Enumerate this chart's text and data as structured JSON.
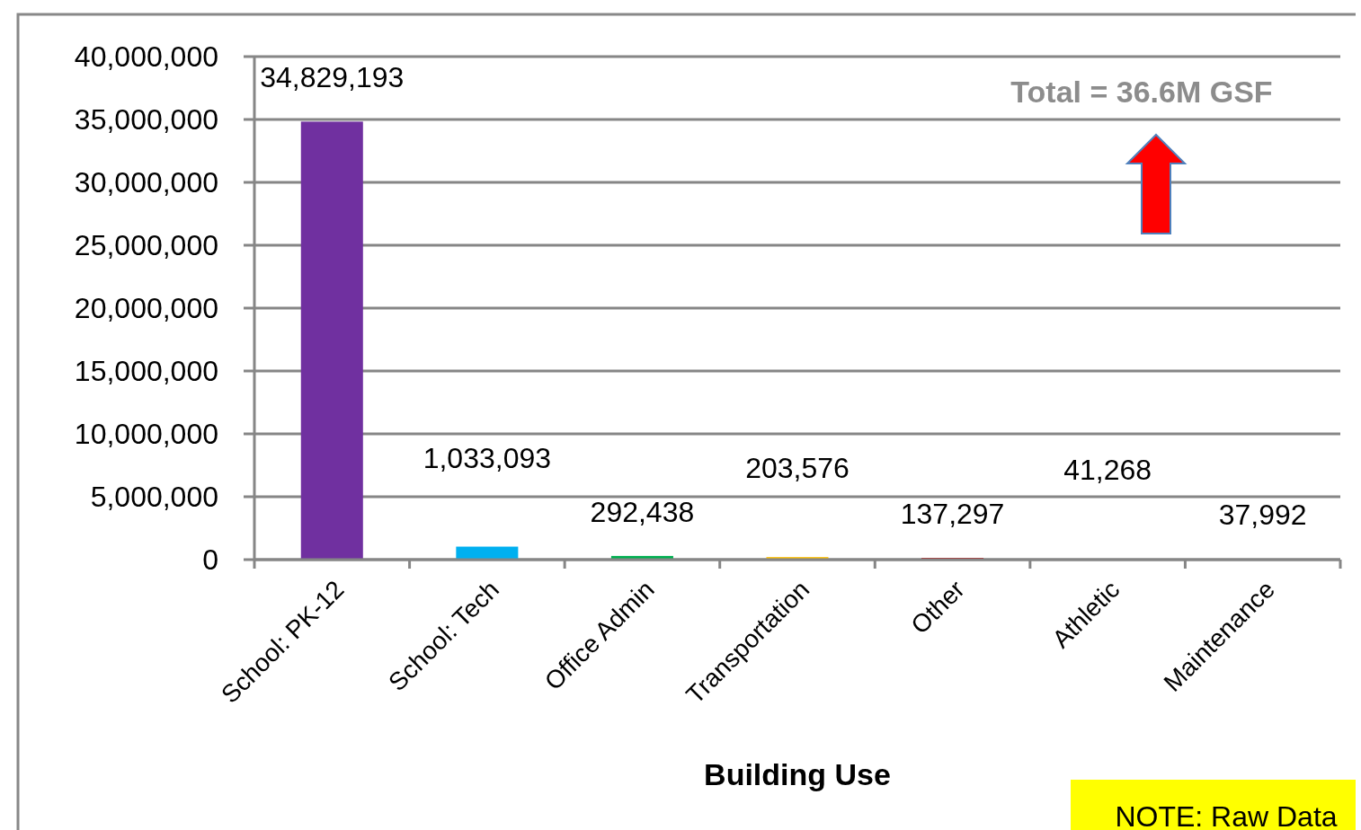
{
  "chart_data": {
    "type": "bar",
    "xlabel": "Building Use",
    "categories": [
      "School: PK-12",
      "School: Tech",
      "Office Admin",
      "Transportation",
      "Other",
      "Athletic",
      "Maintenance"
    ],
    "values": [
      34829193,
      1033093,
      292438,
      203576,
      137297,
      41268,
      37992
    ],
    "colors": [
      "#7030a0",
      "#00b0f0",
      "#00b050",
      "#ffc000",
      "#c00000",
      "#4f81bd",
      "#9bbb59"
    ],
    "ylim": [
      0,
      40000000
    ],
    "yticks": [
      {
        "value": 0,
        "label": "0"
      },
      {
        "value": 5000000,
        "label": "5,000,000"
      },
      {
        "value": 10000000,
        "label": "10,000,000"
      },
      {
        "value": 15000000,
        "label": "15,000,000"
      },
      {
        "value": 20000000,
        "label": "20,000,000"
      },
      {
        "value": 25000000,
        "label": "25,000,000"
      },
      {
        "value": 30000000,
        "label": "30,000,000"
      },
      {
        "value": 35000000,
        "label": "35,000,000"
      },
      {
        "value": 40000000,
        "label": "40,000,000"
      }
    ],
    "grid": "y",
    "value_labels": [
      "34,829,193",
      "1,033,093",
      "292,438",
      "203,576",
      "137,297",
      "41,268",
      "37,992"
    ],
    "annotations": [
      "Total = 36.6M GSF",
      "NOTE: Raw Data"
    ]
  }
}
